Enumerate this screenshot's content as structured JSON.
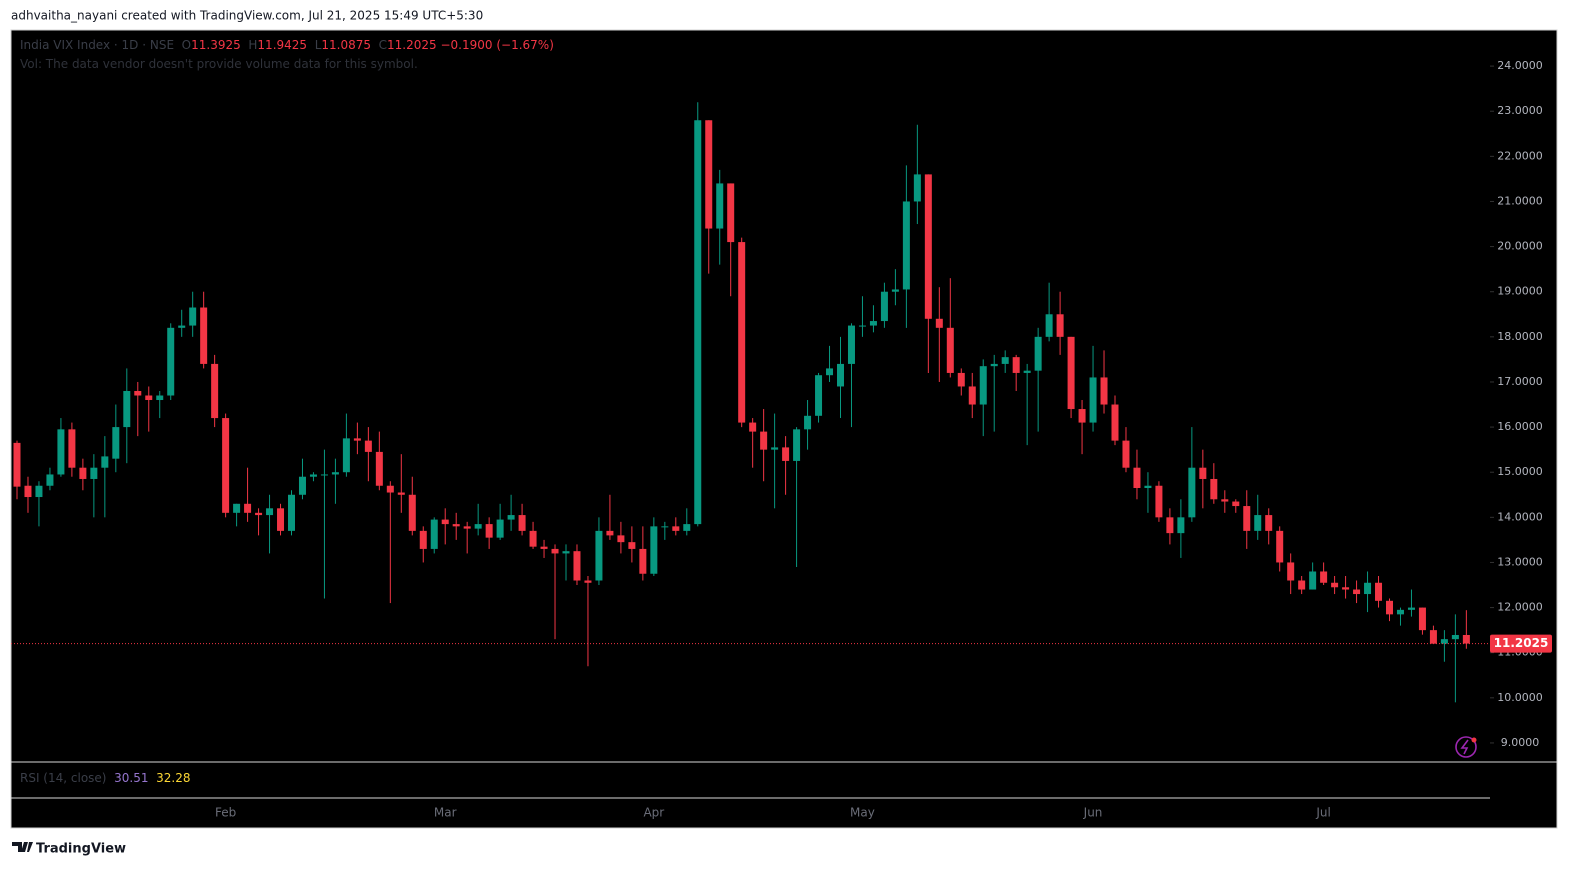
{
  "header": {
    "attribution": "adhvaitha_nayani created with TradingView.com, Jul 21, 2025 15:49 UTC+5:30"
  },
  "footer": {
    "brand": "TradingView"
  },
  "chart_data": {
    "type": "candlestick",
    "symbol_label": "India VIX Index · 1D · NSE",
    "ohlc_labels": [
      "O",
      "H",
      "L",
      "C"
    ],
    "change_label": "−0.1900 (−1.67%)",
    "volume_note": "Vol: The data vendor doesn't provide volume data for this symbol.",
    "colors": {
      "up": "#089981",
      "down": "#f23645"
    },
    "ylim": [
      8.6,
      24.8
    ],
    "yticks": [
      {
        "value": 24,
        "label": "24.0000"
      },
      {
        "value": 23,
        "label": "23.0000"
      },
      {
        "value": 22,
        "label": "22.0000"
      },
      {
        "value": 21,
        "label": "21.0000"
      },
      {
        "value": 20,
        "label": "20.0000"
      },
      {
        "value": 19,
        "label": "19.0000"
      },
      {
        "value": 18,
        "label": "18.0000"
      },
      {
        "value": 17,
        "label": "17.0000"
      },
      {
        "value": 16,
        "label": "16.0000"
      },
      {
        "value": 15,
        "label": "15.0000"
      },
      {
        "value": 14,
        "label": "14.0000"
      },
      {
        "value": 13,
        "label": "13.0000"
      },
      {
        "value": 12,
        "label": "12.0000"
      },
      {
        "value": 11,
        "label": "11.0000"
      },
      {
        "value": 10,
        "label": "10.0000"
      },
      {
        "value": 9,
        "label": "9.0000"
      }
    ],
    "categories": [
      null,
      null,
      null,
      null,
      null,
      null,
      null,
      null,
      null,
      null,
      null,
      null,
      null,
      null,
      null,
      null,
      null,
      null,
      null,
      "Feb",
      null,
      null,
      null,
      null,
      null,
      null,
      null,
      null,
      null,
      null,
      null,
      null,
      null,
      null,
      null,
      null,
      null,
      null,
      null,
      "Mar",
      null,
      null,
      null,
      null,
      null,
      null,
      null,
      null,
      null,
      null,
      null,
      null,
      null,
      null,
      null,
      null,
      null,
      null,
      "Apr",
      null,
      null,
      null,
      null,
      null,
      null,
      null,
      null,
      null,
      null,
      null,
      null,
      null,
      null,
      null,
      null,
      null,
      null,
      "May",
      null,
      null,
      null,
      null,
      null,
      null,
      null,
      null,
      null,
      null,
      null,
      null,
      null,
      null,
      null,
      null,
      null,
      null,
      null,
      null,
      "Jun",
      null,
      null,
      null,
      null,
      null,
      null,
      null,
      null,
      null,
      null,
      null,
      null,
      null,
      null,
      null,
      null,
      null,
      null,
      null,
      null,
      "Jul",
      null,
      null,
      null,
      null,
      null,
      null,
      null,
      null,
      null,
      null,
      null,
      null,
      null
    ],
    "open": [
      15.65,
      14.7,
      14.45,
      14.7,
      14.95,
      15.95,
      15.1,
      14.85,
      15.1,
      15.3,
      16.0,
      16.8,
      16.7,
      16.6,
      16.7,
      18.2,
      18.25,
      18.65,
      17.4,
      16.2,
      14.1,
      14.3,
      14.1,
      14.05,
      14.2,
      13.7,
      14.5,
      14.9,
      14.95,
      14.95,
      15.0,
      15.75,
      15.7,
      15.45,
      14.7,
      14.55,
      14.5,
      13.7,
      13.3,
      13.95,
      13.85,
      13.8,
      13.75,
      13.85,
      13.55,
      13.95,
      14.05,
      13.7,
      13.35,
      13.3,
      13.2,
      13.25,
      12.6,
      12.6,
      13.7,
      13.6,
      13.45,
      13.3,
      12.75,
      13.8,
      13.8,
      13.7,
      13.85,
      22.8,
      20.4,
      21.4,
      20.1,
      16.1,
      15.9,
      15.5,
      15.55,
      15.25,
      15.95,
      16.25,
      17.15,
      16.9,
      17.4,
      18.25,
      18.25,
      18.35,
      19.0,
      19.05,
      21.0,
      21.6,
      18.4,
      18.2,
      17.2,
      16.9,
      16.5,
      17.35,
      17.4,
      17.55,
      17.2,
      17.25,
      18.0,
      18.5,
      18.0,
      16.4,
      16.1,
      17.1,
      16.5,
      15.7,
      15.1,
      14.65,
      14.7,
      14.0,
      13.65,
      14.0,
      15.1,
      14.85,
      14.4,
      14.35,
      14.25,
      13.7,
      14.05,
      13.7,
      13.0,
      12.6,
      12.4,
      12.8,
      12.55,
      12.45,
      12.4,
      12.3,
      12.55,
      12.15,
      11.85,
      11.95,
      12.0,
      11.5,
      11.2,
      11.3,
      11.3925
    ],
    "high": [
      15.7,
      14.9,
      14.8,
      15.1,
      16.2,
      16.1,
      15.3,
      15.4,
      15.8,
      16.5,
      17.3,
      17.0,
      16.9,
      16.8,
      18.3,
      18.6,
      19.0,
      19.0,
      17.6,
      16.3,
      14.3,
      15.1,
      14.2,
      14.5,
      14.3,
      14.6,
      15.3,
      15.0,
      15.5,
      15.3,
      16.3,
      16.1,
      16.0,
      15.9,
      14.8,
      15.4,
      14.9,
      13.8,
      14.0,
      14.2,
      14.1,
      13.9,
      14.3,
      14.0,
      14.3,
      14.5,
      14.3,
      13.9,
      13.5,
      13.4,
      13.4,
      13.4,
      12.7,
      14.0,
      14.5,
      13.9,
      13.8,
      13.8,
      14.0,
      13.9,
      14.0,
      14.2,
      23.2,
      22.8,
      21.7,
      21.4,
      20.2,
      16.2,
      16.4,
      16.3,
      15.8,
      16.0,
      16.6,
      17.2,
      17.8,
      18.0,
      18.3,
      18.9,
      18.7,
      19.2,
      19.5,
      21.8,
      22.7,
      21.6,
      19.1,
      19.3,
      17.3,
      17.2,
      17.5,
      17.6,
      17.7,
      17.6,
      17.4,
      18.2,
      19.2,
      19.0,
      18.0,
      16.6,
      17.8,
      17.7,
      16.7,
      16.0,
      15.5,
      15.0,
      14.8,
      14.2,
      14.4,
      16.0,
      15.5,
      15.2,
      14.6,
      14.4,
      14.6,
      14.5,
      14.2,
      13.8,
      13.2,
      12.7,
      13.0,
      13.0,
      12.7,
      12.7,
      12.6,
      12.8,
      12.7,
      12.2,
      12.0,
      12.4,
      12.0,
      11.6,
      11.5,
      11.85,
      11.9425
    ],
    "low": [
      14.4,
      14.1,
      13.8,
      14.6,
      14.9,
      14.9,
      14.6,
      14.0,
      14.0,
      15.0,
      15.2,
      15.8,
      15.9,
      16.2,
      16.6,
      18.0,
      18.0,
      17.3,
      16.0,
      14.0,
      13.8,
      13.9,
      13.6,
      13.2,
      13.6,
      13.6,
      14.4,
      14.8,
      12.2,
      14.3,
      14.9,
      15.4,
      14.8,
      14.6,
      12.1,
      14.1,
      13.6,
      13.0,
      13.2,
      13.4,
      13.5,
      13.2,
      13.6,
      13.3,
      13.5,
      13.7,
      13.6,
      13.3,
      13.1,
      11.3,
      12.6,
      12.5,
      10.7,
      12.5,
      13.5,
      13.2,
      13.0,
      12.6,
      12.7,
      13.5,
      13.6,
      13.6,
      13.8,
      19.4,
      19.6,
      18.9,
      16.0,
      15.1,
      14.8,
      14.2,
      14.5,
      12.9,
      15.5,
      16.1,
      17.0,
      16.2,
      16.0,
      18.0,
      18.1,
      18.2,
      18.7,
      18.2,
      20.5,
      17.2,
      17.0,
      17.1,
      16.7,
      16.2,
      15.8,
      15.9,
      17.2,
      16.8,
      15.6,
      15.9,
      17.9,
      17.6,
      16.2,
      15.4,
      15.9,
      16.3,
      15.6,
      15.0,
      14.4,
      14.1,
      13.9,
      13.4,
      13.1,
      13.9,
      14.2,
      14.3,
      14.1,
      14.1,
      13.3,
      13.5,
      13.4,
      12.8,
      12.3,
      12.3,
      12.4,
      12.5,
      12.3,
      12.2,
      12.1,
      11.9,
      12.0,
      11.7,
      11.6,
      11.8,
      11.4,
      11.2,
      10.8,
      9.9,
      11.0875
    ],
    "close": [
      14.68,
      14.45,
      14.7,
      14.95,
      15.95,
      15.1,
      14.85,
      15.1,
      15.35,
      16.0,
      16.8,
      16.7,
      16.6,
      16.7,
      18.2,
      18.25,
      18.65,
      17.4,
      16.2,
      14.1,
      14.3,
      14.1,
      14.05,
      14.2,
      13.7,
      14.5,
      14.9,
      14.95,
      14.95,
      15.0,
      15.75,
      15.7,
      15.45,
      14.7,
      14.55,
      14.5,
      13.7,
      13.3,
      13.95,
      13.85,
      13.8,
      13.75,
      13.85,
      13.55,
      13.95,
      14.05,
      13.7,
      13.35,
      13.3,
      13.2,
      13.25,
      12.6,
      12.55,
      13.7,
      13.6,
      13.45,
      13.3,
      12.75,
      13.8,
      13.8,
      13.7,
      13.85,
      22.8,
      20.4,
      21.4,
      20.1,
      16.1,
      15.9,
      15.5,
      15.55,
      15.25,
      15.95,
      16.25,
      17.15,
      17.3,
      17.4,
      18.25,
      18.25,
      18.35,
      19.0,
      19.05,
      21.0,
      21.6,
      18.4,
      18.2,
      17.2,
      16.9,
      16.5,
      17.35,
      17.4,
      17.55,
      17.2,
      17.25,
      18.0,
      18.5,
      18.0,
      16.4,
      16.1,
      17.1,
      16.5,
      15.7,
      15.1,
      14.65,
      14.7,
      14.0,
      13.65,
      14.0,
      15.1,
      14.85,
      14.4,
      14.35,
      14.25,
      13.7,
      14.05,
      13.7,
      13.0,
      12.6,
      12.4,
      12.8,
      12.55,
      12.45,
      12.4,
      12.3,
      12.55,
      12.15,
      11.85,
      11.95,
      12.0,
      11.5,
      11.2,
      11.3,
      11.3925,
      11.2025
    ],
    "rsi": {
      "title": "RSI (14, close)",
      "values": [
        30.51,
        32.28
      ],
      "colors": [
        "#9575cd",
        "#fdd835"
      ]
    }
  }
}
